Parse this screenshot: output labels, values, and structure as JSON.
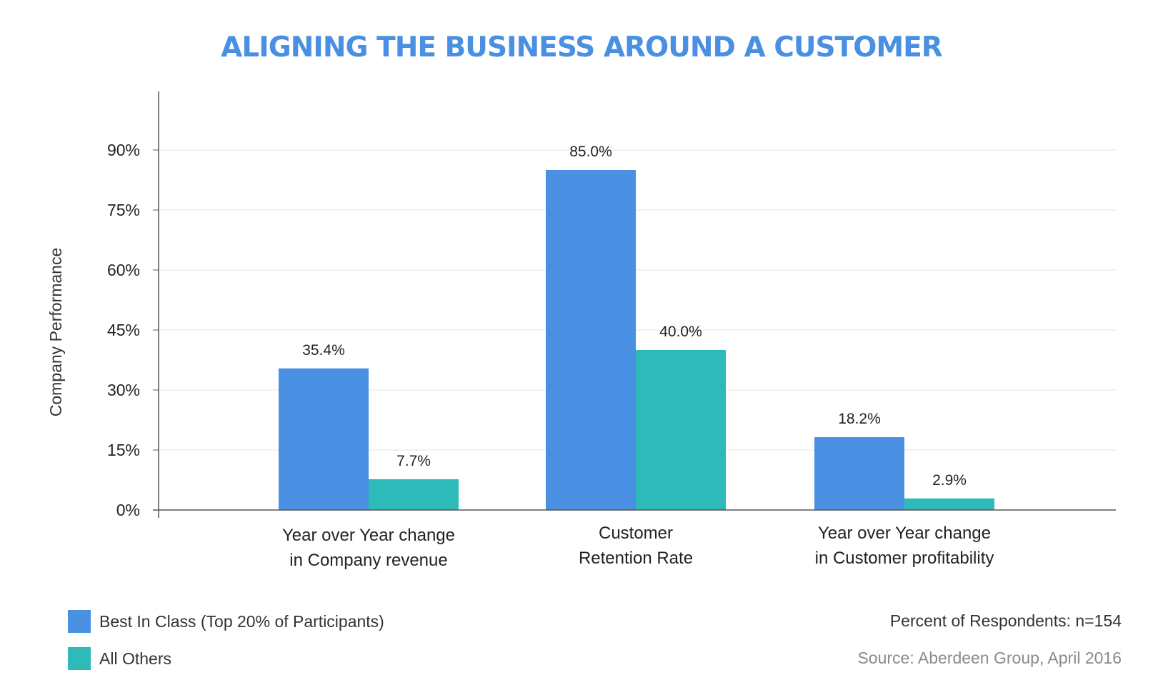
{
  "chart_data": {
    "type": "bar",
    "title": "ALIGNING THE BUSINESS AROUND A CUSTOMER",
    "ylabel": "Company Performance",
    "xlabel": "",
    "ylim": [
      0,
      105
    ],
    "yticks": [
      0,
      15,
      30,
      45,
      60,
      75,
      90
    ],
    "ytick_labels": [
      "0%",
      "15%",
      "30%",
      "45%",
      "60%",
      "75%",
      "90%"
    ],
    "categories": [
      [
        "Year over Year change",
        "in Company revenue"
      ],
      [
        "Customer",
        "Retention Rate"
      ],
      [
        "Year over Year change",
        "in Customer profitability"
      ]
    ],
    "series": [
      {
        "name": "Best In Class (Top 20% of Participants)",
        "color": "#4a90e2",
        "values": [
          35.4,
          85.0,
          18.2
        ],
        "labels": [
          "35.4%",
          "85.0%",
          "18.2%"
        ]
      },
      {
        "name": "All Others",
        "color": "#2dbab8",
        "values": [
          7.7,
          40.0,
          2.9
        ],
        "labels": [
          "7.7%",
          "40.0%",
          "2.9%"
        ]
      }
    ],
    "grid": true,
    "legend_position": "bottom-left"
  },
  "colors": {
    "title": "#4a90e2",
    "grid": "#e3e3e3",
    "axis": "#555555",
    "note": "#333333",
    "source": "#8a8a8a"
  },
  "notes": {
    "respondents": "Percent of Respondents: n=154",
    "source": "Source: Aberdeen Group, April 2016"
  }
}
